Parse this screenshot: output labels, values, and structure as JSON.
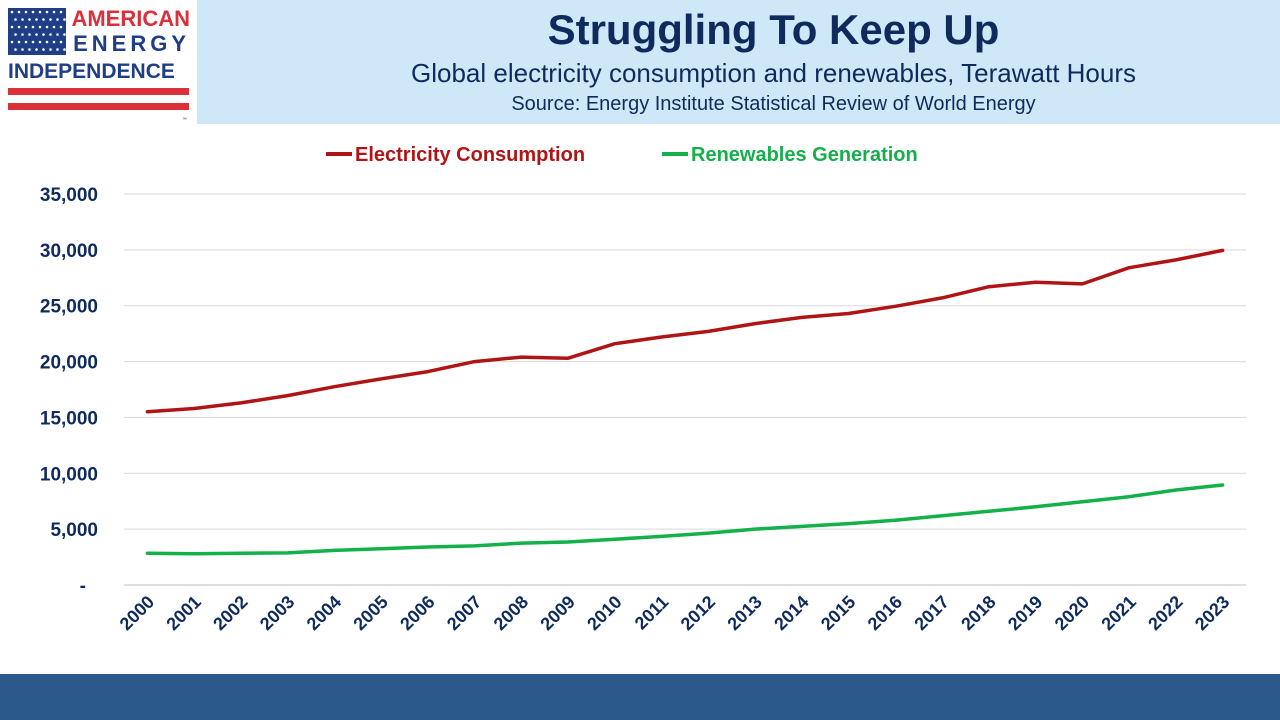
{
  "logo": {
    "line1": "AMERICAN",
    "line2": "ENERGY",
    "line3": "INDEPENDENCE",
    "tm": "™",
    "colors": {
      "blue": "#1f3e85",
      "red": "#d9303a",
      "white": "#ffffff"
    }
  },
  "header": {
    "title": "Struggling To Keep Up",
    "subtitle": "Global electricity consumption and renewables, Terawatt Hours",
    "source": "Source: Energy Institute Statistical Review of World Energy"
  },
  "colors": {
    "electricity": "#b01515",
    "renewables": "#14b04a",
    "axis_text": "#0f2a5c",
    "grid": "#d9d9d9",
    "header_bg": "#cfe8f7",
    "footer_bg": "#2b5a8a"
  },
  "chart_data": {
    "type": "line",
    "title": "",
    "xlabel": "",
    "ylabel": "",
    "x": [
      "2000",
      "2001",
      "2002",
      "2003",
      "2004",
      "2005",
      "2006",
      "2007",
      "2008",
      "2009",
      "2010",
      "2011",
      "2012",
      "2013",
      "2014",
      "2015",
      "2016",
      "2017",
      "2018",
      "2019",
      "2020",
      "2021",
      "2022",
      "2023"
    ],
    "series": [
      {
        "name": "Electricity Consumption",
        "values": [
          15500,
          15800,
          16300,
          16950,
          17750,
          18450,
          19100,
          20000,
          20400,
          20300,
          21600,
          22200,
          22700,
          23400,
          23950,
          24300,
          24950,
          25700,
          26700,
          27100,
          26950,
          28400,
          29100,
          29950
        ]
      },
      {
        "name": "Renewables Generation",
        "values": [
          2850,
          2800,
          2850,
          2870,
          3100,
          3250,
          3400,
          3500,
          3750,
          3850,
          4100,
          4350,
          4650,
          5000,
          5250,
          5500,
          5800,
          6200,
          6600,
          7000,
          7450,
          7900,
          8500,
          8950
        ]
      }
    ],
    "y_ticks": [
      "-",
      "5,000",
      "10,000",
      "15,000",
      "20,000",
      "25,000",
      "30,000",
      "35,000"
    ],
    "ylim": [
      0,
      35000
    ],
    "grid": true,
    "legend": "top-center"
  }
}
